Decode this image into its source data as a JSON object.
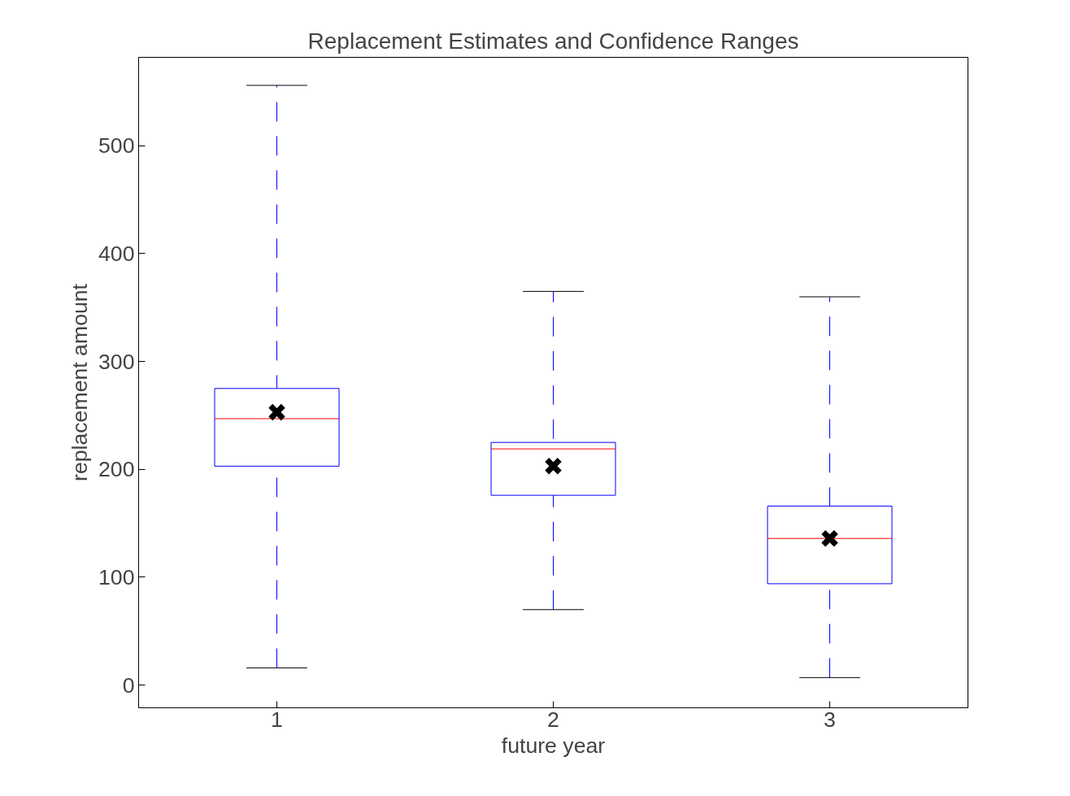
{
  "chart_data": {
    "type": "box",
    "title": "Replacement Estimates and Confidence Ranges",
    "xlabel": "future year",
    "ylabel": "replacement amount",
    "categories": [
      "1",
      "2",
      "3"
    ],
    "boxes": [
      {
        "low": 16,
        "q1": 203,
        "median": 247,
        "q3": 275,
        "high": 556,
        "mean": 253
      },
      {
        "low": 70,
        "q1": 176,
        "median": 219,
        "q3": 225,
        "high": 365,
        "mean": 203
      },
      {
        "low": 7,
        "q1": 94,
        "median": 136,
        "q3": 166,
        "high": 360,
        "mean": 136
      }
    ],
    "color": "#0000ff",
    "ylim": [
      -21,
      582
    ],
    "yticks": [
      0,
      100,
      200,
      300,
      400,
      500
    ],
    "grid": false
  }
}
